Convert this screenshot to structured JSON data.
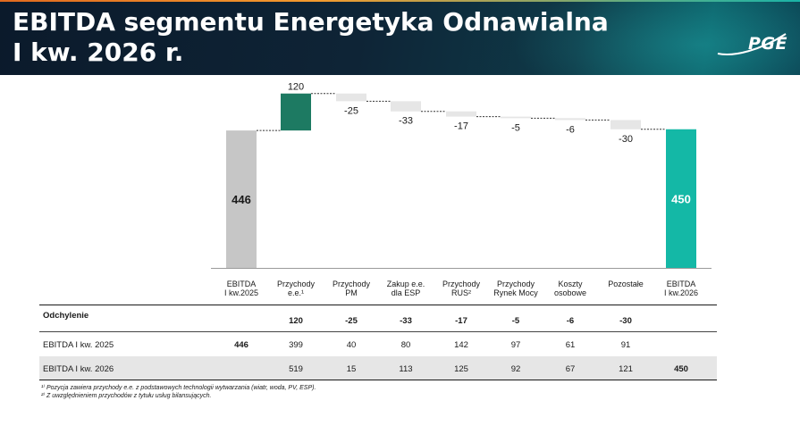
{
  "header": {
    "title_line1": "EBITDA segmentu Energetyka Odnawialna",
    "title_line2": "I kw. 2026 r.",
    "logo_text": "PGE"
  },
  "chart_data": {
    "type": "bar",
    "subtype": "waterfall",
    "categories": [
      "EBITDA I kw.2025",
      "Przychody e.e.¹",
      "Przychody PM",
      "Zakup e.e. dla ESP",
      "Przychody RUS²",
      "Przychody Rynek Mocy",
      "Koszty osobowe",
      "Pozostałe",
      "EBITDA I kw.2026"
    ],
    "start": {
      "label": "EBITDA I kw.2025",
      "value": 446,
      "value_label": "446"
    },
    "steps": [
      {
        "label": "Przychody e.e.¹",
        "value": 120,
        "value_label": "120"
      },
      {
        "label": "Przychody PM",
        "value": -25,
        "value_label": "-25"
      },
      {
        "label": "Zakup e.e. dla ESP",
        "value": -33,
        "value_label": "-33"
      },
      {
        "label": "Przychody RUS²",
        "value": -17,
        "value_label": "-17"
      },
      {
        "label": "Przychody Rynek Mocy",
        "value": -5,
        "value_label": "-5"
      },
      {
        "label": "Koszty osobowe",
        "value": -6,
        "value_label": "-6"
      },
      {
        "label": "Pozostałe",
        "value": -30,
        "value_label": "-30"
      }
    ],
    "end": {
      "label": "EBITDA I kw.2026",
      "value": 450,
      "value_label": "450"
    },
    "colors": {
      "start": "#c6c6c6",
      "positive": "#1d7a62",
      "negative": "#e6e6e6",
      "end": "#14b8a6",
      "connector": "#333333"
    }
  },
  "table": {
    "headers": [
      {
        "line1": "EBITDA",
        "line2": "I kw.2025"
      },
      {
        "line1": "Przychody",
        "line2": "e.e.¹"
      },
      {
        "line1": "Przychody",
        "line2": "PM"
      },
      {
        "line1": "Zakup e.e.",
        "line2": "dla ESP"
      },
      {
        "line1": "Przychody",
        "line2": "RUS²"
      },
      {
        "line1": "Przychody",
        "line2": "Rynek Mocy"
      },
      {
        "line1": "Koszty",
        "line2": "osobowe"
      },
      {
        "line1": "Pozostałe",
        "line2": ""
      },
      {
        "line1": "EBITDA",
        "line2": "I kw.2026"
      }
    ],
    "rows": [
      {
        "label": "Odchylenie",
        "values": [
          "",
          "120",
          "-25",
          "-33",
          "-17",
          "-5",
          "-6",
          "-30",
          ""
        ]
      },
      {
        "label": "EBITDA I kw. 2025",
        "values": [
          "446",
          "399",
          "40",
          "80",
          "142",
          "97",
          "61",
          "91",
          ""
        ]
      },
      {
        "label": "EBITDA I kw. 2026",
        "values": [
          "",
          "519",
          "15",
          "113",
          "125",
          "92",
          "67",
          "121",
          "450"
        ]
      }
    ]
  },
  "footnotes": {
    "note1": "¹⁾ Pozycja zawiera przychody e.e. z podstawowych technologii wytwarzania (wiatr, woda, PV, ESP).",
    "note2": "²⁾ Z uwzględnieniem przychodów z tytułu usług bilansujących."
  }
}
